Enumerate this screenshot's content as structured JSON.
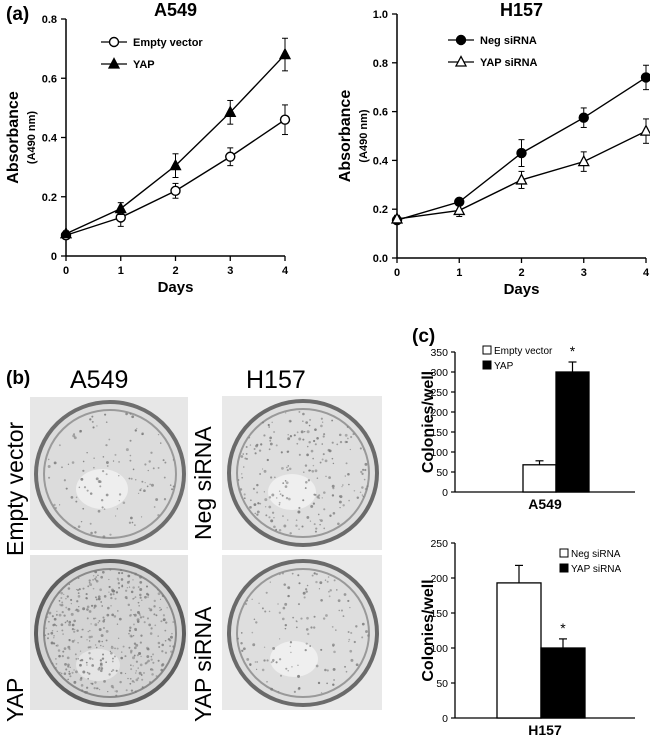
{
  "panel_labels": {
    "a": "(a)",
    "b": "(b)",
    "c": "(c)"
  },
  "photo_headers": {
    "left": "A549",
    "right": "H157"
  },
  "photo_rows": {
    "left_top": "Empty vector",
    "left_bottom": "YAP",
    "right_top": "Neg siRNA",
    "right_bottom": "YAP siRNA"
  },
  "chart_data": [
    {
      "type": "line",
      "title": "A549",
      "xlabel": "Days",
      "ylabel": "Absorbance",
      "ylabel_sub": "(A490 nm)",
      "x": [
        0,
        1,
        2,
        3,
        4
      ],
      "xlim": [
        0,
        4
      ],
      "ylim": [
        0,
        0.8
      ],
      "xticks": [
        "0",
        "1",
        "2",
        "3",
        "4"
      ],
      "yticks": [
        "0",
        "0.2",
        "0.4",
        "0.6",
        "0.8"
      ],
      "legend_position": "top-left",
      "series": [
        {
          "name": "Empty vector",
          "marker": "open-circle",
          "values": [
            0.07,
            0.13,
            0.22,
            0.335,
            0.46
          ],
          "errors": [
            0.01,
            0.03,
            0.025,
            0.03,
            0.05
          ]
        },
        {
          "name": "YAP",
          "marker": "filled-triangle",
          "values": [
            0.075,
            0.16,
            0.305,
            0.485,
            0.68
          ],
          "errors": [
            0.01,
            0.02,
            0.04,
            0.04,
            0.055
          ]
        }
      ]
    },
    {
      "type": "line",
      "title": "H157",
      "xlabel": "Days",
      "ylabel": "Absorbance",
      "ylabel_sub": "(A490 nm)",
      "x": [
        0,
        1,
        2,
        3,
        4
      ],
      "xlim": [
        0,
        4
      ],
      "ylim": [
        0,
        1.0
      ],
      "xticks": [
        "0",
        "1",
        "2",
        "3",
        "4"
      ],
      "yticks": [
        "0.0",
        "0.2",
        "0.4",
        "0.6",
        "0.8",
        "1.0"
      ],
      "legend_position": "top-left",
      "series": [
        {
          "name": "Neg siRNA",
          "marker": "filled-circle",
          "values": [
            0.155,
            0.23,
            0.43,
            0.575,
            0.74
          ],
          "errors": [
            0.015,
            0.015,
            0.055,
            0.04,
            0.05
          ]
        },
        {
          "name": "YAP siRNA",
          "marker": "open-triangle",
          "values": [
            0.16,
            0.195,
            0.32,
            0.395,
            0.52
          ],
          "errors": [
            0.015,
            0.025,
            0.035,
            0.04,
            0.05
          ]
        }
      ]
    },
    {
      "type": "bar",
      "title": "",
      "xlabel": "A549",
      "ylabel": "Colonies/well",
      "ylim": [
        0,
        350
      ],
      "yticks": [
        "0",
        "50",
        "100",
        "150",
        "200",
        "250",
        "300",
        "350"
      ],
      "legend_position": "top-left",
      "series": [
        {
          "name": "Empty vector",
          "fill": "open",
          "value": 68,
          "error": 10
        },
        {
          "name": "YAP",
          "fill": "filled",
          "value": 300,
          "error": 25,
          "annotation": "*"
        }
      ]
    },
    {
      "type": "bar",
      "title": "",
      "xlabel": "H157",
      "ylabel": "Colonies/well",
      "ylim": [
        0,
        250
      ],
      "yticks": [
        "0",
        "50",
        "100",
        "150",
        "200",
        "250"
      ],
      "legend_position": "top-right",
      "series": [
        {
          "name": "Neg siRNA",
          "fill": "open",
          "value": 193,
          "error": 25
        },
        {
          "name": "YAP siRNA",
          "fill": "filled",
          "value": 100,
          "error": 13,
          "annotation": "*"
        }
      ]
    }
  ]
}
